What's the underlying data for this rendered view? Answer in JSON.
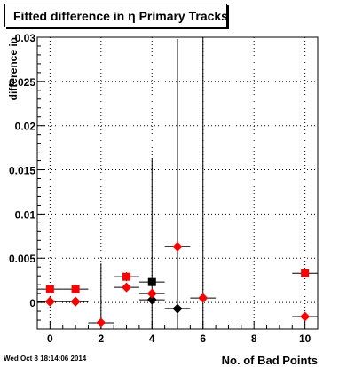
{
  "chart_data": {
    "type": "scatter",
    "title": "Fitted difference in  η Primary Tracks",
    "xlabel": "No. of Bad Points",
    "ylabel": "difference in",
    "xlim": [
      -0.5,
      10.5
    ],
    "ylim": [
      -0.003,
      0.03
    ],
    "x_ticks": [
      0,
      2,
      4,
      6,
      8,
      10
    ],
    "y_ticks": [
      0,
      0.005,
      0.01,
      0.015,
      0.02,
      0.025,
      0.03
    ],
    "y_tick_labels": [
      "0",
      "0.005",
      "0.01",
      "0.015",
      "0.02",
      "0.025",
      "0.03"
    ],
    "grid": true,
    "series": [
      {
        "marker": "square",
        "color": "#ff0000",
        "points": [
          {
            "x": 0,
            "y": 0.0015,
            "xerr": 0.5,
            "yerr": 0.0
          },
          {
            "x": 1,
            "y": 0.0015,
            "xerr": 0.5,
            "yerr": 0.0
          },
          {
            "x": 3,
            "y": 0.0029,
            "xerr": 0.5,
            "yerr": 0.0005
          },
          {
            "x": 10,
            "y": 0.0033,
            "xerr": 0.5,
            "yerr": 0.0
          }
        ]
      },
      {
        "marker": "square",
        "color": "#000000",
        "points": [
          {
            "x": 4,
            "y": 0.0023,
            "xerr": 0.5,
            "yerr": 0.0
          }
        ]
      },
      {
        "marker": "diamond",
        "color": "#000000",
        "points": [
          {
            "x": 0,
            "y": 0.0001,
            "xerr": 0.5,
            "yerr": 0.0
          },
          {
            "x": 1,
            "y": 0.0001,
            "xerr": 0.5,
            "yerr": 0.0
          },
          {
            "x": 4,
            "y": 0.0003,
            "xerr": 0.5,
            "yerr": 0.016
          },
          {
            "x": 5,
            "y": -0.0007,
            "xerr": 0.5,
            "yerr": 0.0305
          }
        ]
      },
      {
        "marker": "diamond",
        "color": "#ff0000",
        "points": [
          {
            "x": 0,
            "y": 0.0001,
            "xerr": 0.5,
            "yerr": 0.0
          },
          {
            "x": 1,
            "y": 0.0001,
            "xerr": 0.5,
            "yerr": 0.0
          },
          {
            "x": 2,
            "y": -0.0023,
            "xerr": 0.5,
            "yerr": 0.0067
          },
          {
            "x": 3,
            "y": 0.0017,
            "xerr": 0.5,
            "yerr": 0.0
          },
          {
            "x": 4,
            "y": 0.001,
            "xerr": 0.5,
            "yerr": 0.0
          },
          {
            "x": 5,
            "y": 0.0063,
            "xerr": 0.5,
            "yerr": 0.0
          },
          {
            "x": 6,
            "y": 0.0005,
            "xerr": 0.5,
            "yerr": 0.03
          },
          {
            "x": 10,
            "y": -0.0016,
            "xerr": 0.5,
            "yerr": 0.0
          }
        ]
      }
    ]
  },
  "footer": {
    "timestamp": "Wed Oct  8 18:14:06 2014"
  }
}
